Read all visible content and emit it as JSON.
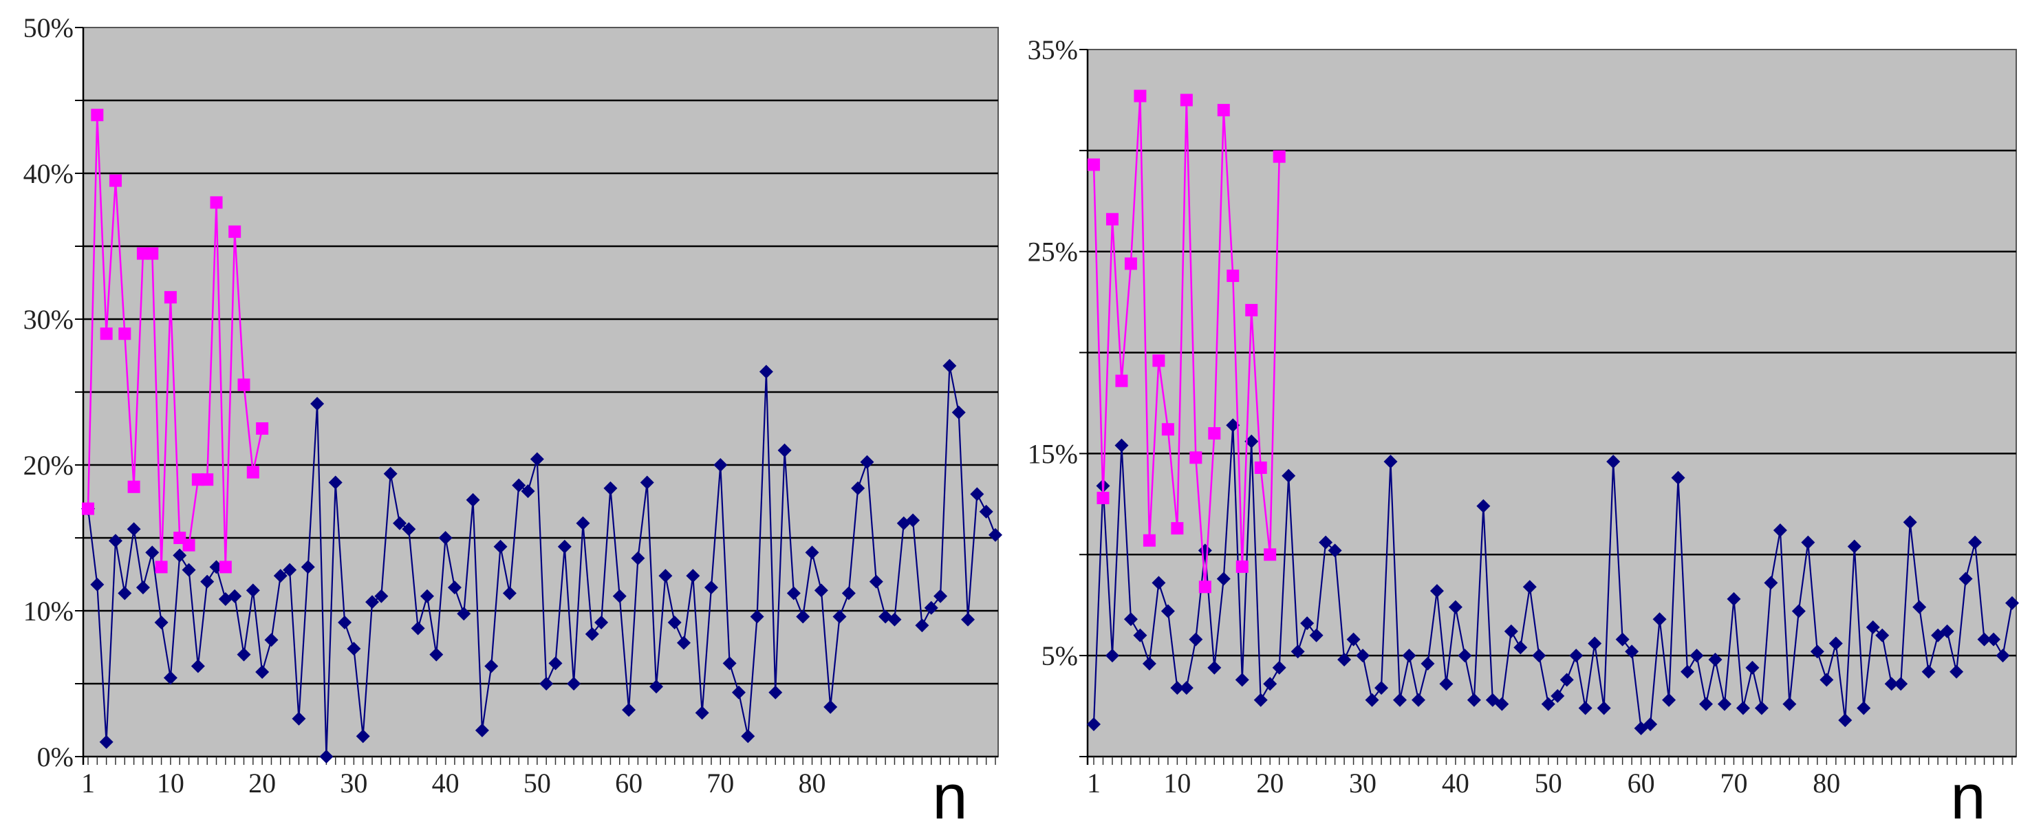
{
  "colors": {
    "plot_background": "#c0c0c0",
    "gridline": "#000000",
    "series_a": "#ff00ff",
    "series_b": "#000080"
  },
  "chart_data": [
    {
      "type": "line",
      "xlabel": "n",
      "ylabel": "",
      "xlim": [
        1,
        100
      ],
      "ylim": [
        0,
        50
      ],
      "y_tick_labels": [
        "0%",
        "10%",
        "20%",
        "30%",
        "40%",
        "50%"
      ],
      "y_tick_values": [
        0,
        10,
        20,
        30,
        40,
        50
      ],
      "x_tick_labels": [
        "1",
        "10",
        "20",
        "30",
        "40",
        "50",
        "60",
        "70",
        "80"
      ],
      "x_tick_values": [
        1,
        10,
        20,
        30,
        40,
        50,
        60,
        70,
        80
      ],
      "grid": true,
      "gridline_values": [
        5,
        10,
        15,
        20,
        25,
        30,
        35,
        40,
        45
      ],
      "series": [
        {
          "color": "#ff00ff",
          "marker": "square",
          "x": [
            1,
            2,
            3,
            4,
            5,
            6,
            7,
            8,
            9,
            10,
            11,
            12,
            13,
            14,
            15,
            16,
            17,
            18,
            19,
            20
          ],
          "y": [
            17.0,
            44.0,
            29.0,
            39.5,
            29.0,
            18.5,
            34.5,
            34.5,
            13.0,
            31.5,
            15.0,
            14.5,
            19.0,
            19.0,
            38.0,
            13.0,
            36.0,
            25.5,
            19.5,
            22.5
          ]
        },
        {
          "color": "#000080",
          "marker": "diamond",
          "x": [
            1,
            2,
            3,
            4,
            5,
            6,
            7,
            8,
            9,
            10,
            11,
            12,
            13,
            14,
            15,
            16,
            17,
            18,
            19,
            20,
            21,
            22,
            23,
            24,
            25,
            26,
            27,
            28,
            29,
            30,
            31,
            32,
            33,
            34,
            35,
            36,
            37,
            38,
            39,
            40,
            41,
            42,
            43,
            44,
            45,
            46,
            47,
            48,
            49,
            50,
            51,
            52,
            53,
            54,
            55,
            56,
            57,
            58,
            59,
            60,
            61,
            62,
            63,
            64,
            65,
            66,
            67,
            68,
            69,
            70,
            71,
            72,
            73,
            74,
            75,
            76,
            77,
            78,
            79,
            80,
            81,
            82,
            83,
            84,
            85,
            86,
            87,
            88,
            89,
            90,
            91,
            92,
            93,
            94,
            95,
            96,
            97,
            98,
            99,
            100
          ],
          "y": [
            17.0,
            11.8,
            1.0,
            14.8,
            11.2,
            15.6,
            11.6,
            14.0,
            9.2,
            5.4,
            13.8,
            12.8,
            6.2,
            12.0,
            13.0,
            10.8,
            11.0,
            7.0,
            11.4,
            5.8,
            8.0,
            12.4,
            12.8,
            2.6,
            13.0,
            24.2,
            0.0,
            18.8,
            9.2,
            7.4,
            1.4,
            10.6,
            11.0,
            19.4,
            16.0,
            15.6,
            8.8,
            11.0,
            7.0,
            15.0,
            11.6,
            9.8,
            17.6,
            1.8,
            6.2,
            14.4,
            11.2,
            18.6,
            18.2,
            20.4,
            5.0,
            6.4,
            14.4,
            5.0,
            16.0,
            8.4,
            9.2,
            18.4,
            11.0,
            3.2,
            13.6,
            18.8,
            4.8,
            12.4,
            9.2,
            7.8,
            12.4,
            3.0,
            11.6,
            20.0,
            6.4,
            4.4,
            1.4,
            9.6,
            26.4,
            4.4,
            21.0,
            11.2,
            9.6,
            14.0,
            11.4,
            3.4,
            9.6,
            11.2,
            18.4,
            20.2,
            12.0,
            9.6,
            9.4,
            16.0,
            16.2,
            9.0,
            10.2,
            11.0,
            26.8,
            23.6,
            9.4,
            18.0,
            16.8,
            15.2
          ]
        }
      ]
    },
    {
      "type": "line",
      "xlabel": "n",
      "ylabel": "",
      "xlim": [
        1,
        100
      ],
      "ylim": [
        0,
        35
      ],
      "y_tick_labels": [
        "5%",
        "15%",
        "25%",
        "35%"
      ],
      "y_tick_values": [
        5,
        15,
        25,
        35
      ],
      "x_tick_labels": [
        "1",
        "10",
        "20",
        "30",
        "40",
        "50",
        "60",
        "70",
        "80"
      ],
      "x_tick_values": [
        1,
        10,
        20,
        30,
        40,
        50,
        60,
        70,
        80
      ],
      "grid": true,
      "gridline_values": [
        5,
        10,
        15,
        20,
        25,
        30
      ],
      "series": [
        {
          "color": "#ff00ff",
          "marker": "square",
          "x": [
            1,
            2,
            3,
            4,
            5,
            6,
            7,
            8,
            9,
            10,
            11,
            12,
            13,
            14,
            15,
            16,
            17,
            18,
            19,
            20,
            21
          ],
          "y": [
            29.3,
            12.8,
            26.6,
            18.6,
            24.4,
            32.7,
            10.7,
            19.6,
            16.2,
            11.3,
            32.5,
            14.8,
            8.4,
            16.0,
            32.0,
            23.8,
            9.4,
            22.1,
            14.3,
            10.0,
            29.7
          ]
        },
        {
          "color": "#000080",
          "marker": "diamond",
          "x": [
            1,
            2,
            3,
            4,
            5,
            6,
            7,
            8,
            9,
            10,
            11,
            12,
            13,
            14,
            15,
            16,
            17,
            18,
            19,
            20,
            21,
            22,
            23,
            24,
            25,
            26,
            27,
            28,
            29,
            30,
            31,
            32,
            33,
            34,
            35,
            36,
            37,
            38,
            39,
            40,
            41,
            42,
            43,
            44,
            45,
            46,
            47,
            48,
            49,
            50,
            51,
            52,
            53,
            54,
            55,
            56,
            57,
            58,
            59,
            60,
            61,
            62,
            63,
            64,
            65,
            66,
            67,
            68,
            69,
            70,
            71,
            72,
            73,
            74,
            75,
            76,
            77,
            78,
            79,
            80,
            81,
            82,
            83,
            84,
            85,
            86,
            87,
            88,
            89,
            90,
            91,
            92,
            93,
            94,
            95,
            96,
            97,
            98,
            99,
            100
          ],
          "y": [
            1.6,
            13.4,
            5.0,
            15.4,
            6.8,
            6.0,
            4.6,
            8.6,
            7.2,
            3.4,
            3.4,
            5.8,
            10.2,
            4.4,
            8.8,
            16.4,
            3.8,
            15.6,
            2.8,
            3.6,
            4.4,
            13.9,
            5.2,
            6.6,
            6.0,
            10.6,
            10.2,
            4.8,
            5.8,
            5.0,
            2.8,
            3.4,
            14.6,
            2.8,
            5.0,
            2.8,
            4.6,
            8.2,
            3.6,
            7.4,
            5.0,
            2.8,
            12.4,
            2.8,
            2.6,
            6.2,
            5.4,
            8.4,
            5.0,
            2.6,
            3.0,
            3.8,
            5.0,
            2.4,
            5.6,
            2.4,
            14.6,
            5.8,
            5.2,
            1.4,
            1.6,
            6.8,
            2.8,
            13.8,
            4.2,
            5.0,
            2.6,
            4.8,
            2.6,
            7.8,
            2.4,
            4.4,
            2.4,
            8.6,
            11.2,
            2.6,
            7.2,
            10.6,
            5.2,
            3.8,
            5.6,
            1.8,
            10.4,
            2.4,
            6.4,
            6.0,
            3.6,
            3.6,
            11.6,
            7.4,
            4.2,
            6.0,
            6.2,
            4.2,
            8.8,
            10.6,
            5.8,
            5.8,
            5.0,
            7.6
          ]
        }
      ]
    }
  ]
}
